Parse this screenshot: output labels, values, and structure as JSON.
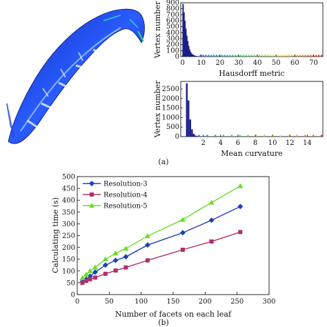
{
  "panel_labels": {
    "a": "(a)",
    "b": "(b)"
  },
  "chart_data": [
    {
      "id": "hausdorff-histogram",
      "type": "bar",
      "xlabel": "Hausdorff metric",
      "ylabel": "Vertex number",
      "xlim": [
        -1,
        75
      ],
      "ylim": [
        0,
        900
      ],
      "x_ticks": [
        0,
        10,
        20,
        30,
        40,
        50,
        60,
        70
      ],
      "y_ticks": [
        0,
        100,
        200,
        300,
        400,
        500,
        600,
        700,
        800,
        900
      ],
      "bins": [
        {
          "x": 0.25,
          "value": 880
        },
        {
          "x": 0.75,
          "value": 740
        },
        {
          "x": 1.25,
          "value": 600
        },
        {
          "x": 1.75,
          "value": 470
        },
        {
          "x": 2.25,
          "value": 350
        },
        {
          "x": 2.75,
          "value": 260
        },
        {
          "x": 3.25,
          "value": 180
        },
        {
          "x": 3.75,
          "value": 120
        },
        {
          "x": 4.25,
          "value": 80
        },
        {
          "x": 4.75,
          "value": 55
        },
        {
          "x": 5.25,
          "value": 38
        },
        {
          "x": 5.75,
          "value": 28
        },
        {
          "x": 6.25,
          "value": 20
        },
        {
          "x": 6.75,
          "value": 14
        },
        {
          "x": 7.25,
          "value": 10
        },
        {
          "x": 7.75,
          "value": 7
        },
        {
          "x": 8.5,
          "value": 5
        },
        {
          "x": 9.5,
          "value": 3
        }
      ],
      "colors": {
        "bars": "#1b1f8a",
        "tail_start": "#2a66ff",
        "tail_mid": "#33dd66",
        "tail_mid2": "#f4e23a",
        "tail_end": "#e23a1f"
      }
    },
    {
      "id": "mean-curvature-histogram",
      "type": "bar",
      "xlabel": "Mean curvature",
      "ylabel": "Vertex number",
      "xlim": [
        -0.6,
        15.8
      ],
      "ylim": [
        0,
        2900
      ],
      "x_ticks": [
        2,
        4,
        6,
        8,
        10,
        12,
        14
      ],
      "y_ticks": [
        0,
        500,
        1000,
        1500,
        2000,
        2500
      ],
      "bins": [
        {
          "x": 0.1,
          "value": 2800
        },
        {
          "x": 0.3,
          "value": 1900
        },
        {
          "x": 0.5,
          "value": 900
        },
        {
          "x": 0.7,
          "value": 380
        },
        {
          "x": 0.9,
          "value": 150
        },
        {
          "x": 1.1,
          "value": 60
        },
        {
          "x": 1.3,
          "value": 30
        },
        {
          "x": 1.5,
          "value": 15
        }
      ],
      "colors": {
        "bars": "#1b1f8a",
        "tail_start": "#2a66ff",
        "tail_mid": "#33dd66",
        "tail_mid2": "#f4e23a",
        "tail_end": "#e23a1f"
      }
    },
    {
      "id": "calculating-time-lines",
      "type": "line",
      "xlabel": "Number of facets on each leaf",
      "ylabel": "Calculating time (s)",
      "xlim": [
        0,
        300
      ],
      "ylim": [
        0,
        500
      ],
      "x_ticks": [
        0,
        50,
        100,
        150,
        200,
        250,
        300
      ],
      "y_ticks": [
        0,
        50,
        100,
        150,
        200,
        250,
        300,
        350,
        400,
        450,
        500
      ],
      "legend_position": "top-left",
      "series": [
        {
          "name": "Resolution-3",
          "color": "#1f3fbf",
          "marker": "diamond",
          "x": [
            8,
            14,
            20,
            28,
            44,
            60,
            76,
            110,
            165,
            210,
            255
          ],
          "y": [
            55,
            65,
            78,
            95,
            125,
            145,
            160,
            210,
            262,
            315,
            373
          ]
        },
        {
          "name": "Resolution-4",
          "color": "#b0306a",
          "marker": "square",
          "x": [
            8,
            14,
            20,
            28,
            44,
            60,
            76,
            110,
            165,
            210,
            255
          ],
          "y": [
            50,
            58,
            65,
            72,
            88,
            102,
            115,
            145,
            190,
            225,
            265
          ]
        },
        {
          "name": "Resolution-5",
          "color": "#66dd22",
          "marker": "triangle",
          "x": [
            8,
            14,
            20,
            28,
            44,
            60,
            76,
            110,
            165,
            210,
            255
          ],
          "y": [
            70,
            85,
            100,
            115,
            150,
            175,
            195,
            248,
            318,
            390,
            460
          ]
        }
      ]
    }
  ]
}
